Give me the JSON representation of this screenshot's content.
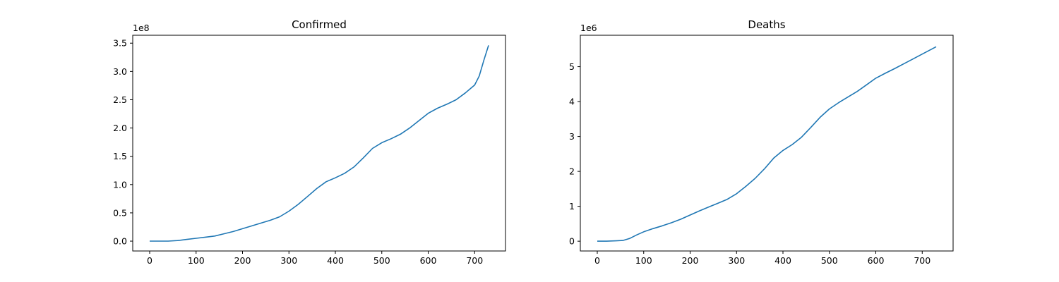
{
  "chart_data": [
    {
      "type": "line",
      "title": "Confirmed",
      "xlabel": "",
      "ylabel": "",
      "offset_text": "1e8",
      "xlim": [
        -36.5,
        766.5
      ],
      "ylim": [
        -0.174,
        3.64
      ],
      "xticks": [
        0,
        100,
        200,
        300,
        400,
        500,
        600,
        700
      ],
      "yticks": [
        0.0,
        0.5,
        1.0,
        1.5,
        2.0,
        2.5,
        3.0,
        3.5
      ],
      "ytick_labels": [
        "0.0",
        "0.5",
        "1.0",
        "1.5",
        "2.0",
        "2.5",
        "3.0",
        "3.5"
      ],
      "grid": false,
      "series": [
        {
          "color": "#1f77b4",
          "x": [
            0,
            20,
            40,
            60,
            80,
            100,
            120,
            140,
            160,
            180,
            200,
            220,
            240,
            260,
            280,
            300,
            320,
            340,
            360,
            380,
            400,
            420,
            440,
            460,
            480,
            500,
            520,
            540,
            560,
            580,
            600,
            620,
            640,
            660,
            680,
            700,
            710,
            720,
            730
          ],
          "y": [
            0.0,
            0.0,
            0.0,
            0.01,
            0.03,
            0.05,
            0.07,
            0.09,
            0.13,
            0.17,
            0.22,
            0.27,
            0.32,
            0.37,
            0.43,
            0.53,
            0.65,
            0.79,
            0.93,
            1.05,
            1.12,
            1.2,
            1.31,
            1.47,
            1.64,
            1.74,
            1.81,
            1.89,
            2.0,
            2.13,
            2.26,
            2.35,
            2.42,
            2.5,
            2.62,
            2.76,
            2.92,
            3.2,
            3.46
          ]
        }
      ]
    },
    {
      "type": "line",
      "title": "Deaths",
      "xlabel": "",
      "ylabel": "",
      "offset_text": "1e6",
      "xlim": [
        -36.5,
        766.5
      ],
      "ylim": [
        -0.28,
        5.9
      ],
      "xticks": [
        0,
        100,
        200,
        300,
        400,
        500,
        600,
        700
      ],
      "yticks": [
        0,
        1,
        2,
        3,
        4,
        5
      ],
      "ytick_labels": [
        "0",
        "1",
        "2",
        "3",
        "4",
        "5"
      ],
      "grid": false,
      "series": [
        {
          "color": "#1f77b4",
          "x": [
            0,
            20,
            40,
            55,
            70,
            85,
            100,
            120,
            140,
            160,
            180,
            200,
            220,
            240,
            260,
            280,
            300,
            320,
            340,
            360,
            380,
            400,
            420,
            440,
            460,
            480,
            500,
            520,
            540,
            560,
            580,
            600,
            620,
            640,
            660,
            680,
            700,
            720,
            730
          ],
          "y": [
            0.0,
            0.0,
            0.01,
            0.02,
            0.08,
            0.18,
            0.27,
            0.36,
            0.44,
            0.53,
            0.63,
            0.75,
            0.87,
            0.98,
            1.09,
            1.2,
            1.36,
            1.57,
            1.8,
            2.07,
            2.38,
            2.6,
            2.77,
            2.98,
            3.26,
            3.55,
            3.79,
            3.97,
            4.13,
            4.29,
            4.48,
            4.67,
            4.81,
            4.94,
            5.08,
            5.22,
            5.36,
            5.5,
            5.57
          ]
        }
      ]
    }
  ]
}
